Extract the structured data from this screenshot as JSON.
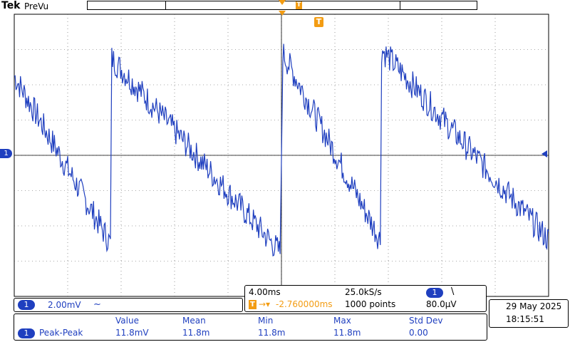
{
  "header": {
    "brand": "Tek",
    "mode": "PreVu",
    "trigger_marker": "T",
    "record_marker": "T"
  },
  "channel": {
    "marker": "1",
    "scale": "2.00mV",
    "coupling_icon": "~"
  },
  "timebase": {
    "horizontal": "4.00ms",
    "sample_rate": "25.0kS/s",
    "trigger_delay": "-2.760000ms",
    "record_length": "1000 points",
    "trigger_channel": "1",
    "trigger_slope": "\\",
    "trigger_level": "80.0µV"
  },
  "datetime": {
    "date": "29 May  2025",
    "time": "18:15:51"
  },
  "measurements": {
    "headers": [
      "Value",
      "Mean",
      "Min",
      "Max",
      "Std Dev"
    ],
    "rows": [
      {
        "channel": "1",
        "name": "Peak-Peak",
        "value": "11.8mV",
        "mean": "11.8m",
        "min": "11.8m",
        "max": "11.8m",
        "stddev": "0.00"
      }
    ]
  },
  "chart_data": {
    "type": "line",
    "title": "",
    "xlabel": "",
    "ylabel": "",
    "x_divisions": 10,
    "y_divisions": 8,
    "x_unit_per_div": "4.00ms",
    "y_unit_per_div": "2.00mV",
    "xlim": [
      -20,
      20
    ],
    "ylim": [
      -8,
      8
    ],
    "grid": true,
    "series": [
      {
        "waveform": "sawtooth",
        "color": "#1f3fbf",
        "segments": [
          {
            "x": [
              -20.0,
              -12.8
            ],
            "y": [
              4.5,
              -5.0
            ]
          },
          {
            "x": [
              -12.7,
              -0.1
            ],
            "y": [
              5.5,
              -5.5
            ]
          },
          {
            "x": [
              0.1,
              7.4
            ],
            "y": [
              5.8,
              -4.8
            ]
          },
          {
            "x": [
              7.5,
              20.0
            ],
            "y": [
              6.0,
              -4.8
            ]
          }
        ]
      }
    ]
  }
}
